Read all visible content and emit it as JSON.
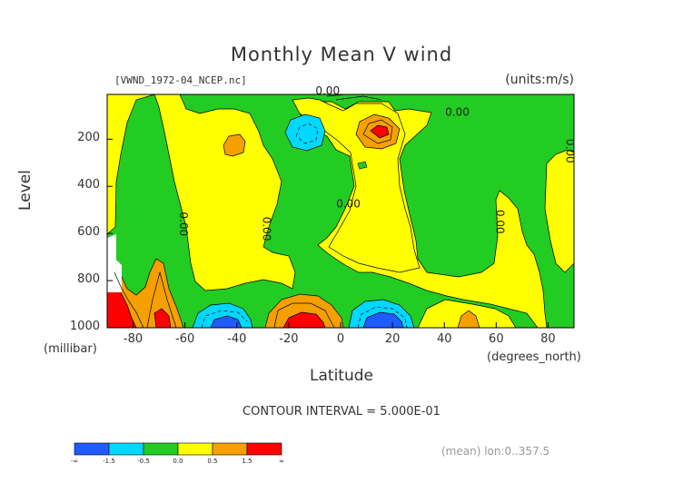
{
  "title": "Monthly Mean V wind",
  "file_label": "[VWND_1972-04_NCEP.nc]",
  "units_label": "(units:m/s)",
  "y_axis_label": "Level",
  "y_axis_unit": "(millibar)",
  "x_axis_label": "Latitude",
  "x_axis_unit": "(degrees_north)",
  "contour_interval_text": "CONTOUR INTERVAL = 5.000E-01",
  "mean_label": "(mean) lon:0..357.5",
  "chart_data": {
    "type": "heatmap",
    "x_range": [
      -90,
      90
    ],
    "y_range": [
      1000,
      10
    ],
    "x_ticks": [
      -80,
      -60,
      -40,
      -20,
      0,
      20,
      40,
      60,
      80
    ],
    "x_tick_labels": [
      "-80",
      "-60",
      "-40",
      "-20",
      "0",
      "20",
      "40",
      "60",
      "80"
    ],
    "y_ticks": [
      200,
      400,
      600,
      800,
      1000
    ],
    "y_tick_labels": [
      "200",
      "400",
      "600",
      "800",
      "1000"
    ],
    "contour_labels": [
      {
        "text": "0.00",
        "lat": -5,
        "level": 10
      },
      {
        "text": "0.00",
        "lat": 45,
        "level": 100
      },
      {
        "text": "0.00",
        "lat": -62,
        "level": 560,
        "rotate": 90
      },
      {
        "text": "0.00",
        "lat": -30,
        "level": 580,
        "rotate": 90
      },
      {
        "text": "0.00",
        "lat": 3,
        "level": 490
      },
      {
        "text": "0.00",
        "lat": 60,
        "level": 550,
        "rotate": 90
      },
      {
        "text": "0.00",
        "lat": 87,
        "level": 250,
        "rotate": 90
      }
    ],
    "colorbar": {
      "colors": [
        "#1f5bff",
        "#00d8ff",
        "#22cc22",
        "#ffff00",
        "#f5a000",
        "#ff0000"
      ],
      "labels": [
        "-∞",
        "-1.5",
        "-0.5",
        "0.0",
        "0.5",
        "1.5",
        "∞"
      ]
    },
    "fill_colors": {
      "strong_negative": "#1f5bff",
      "negative": "#00d8ff",
      "weak_negative": "#22cc22",
      "weak_positive": "#ffff00",
      "positive": "#f5a000",
      "strong_positive": "#ff0000"
    }
  }
}
